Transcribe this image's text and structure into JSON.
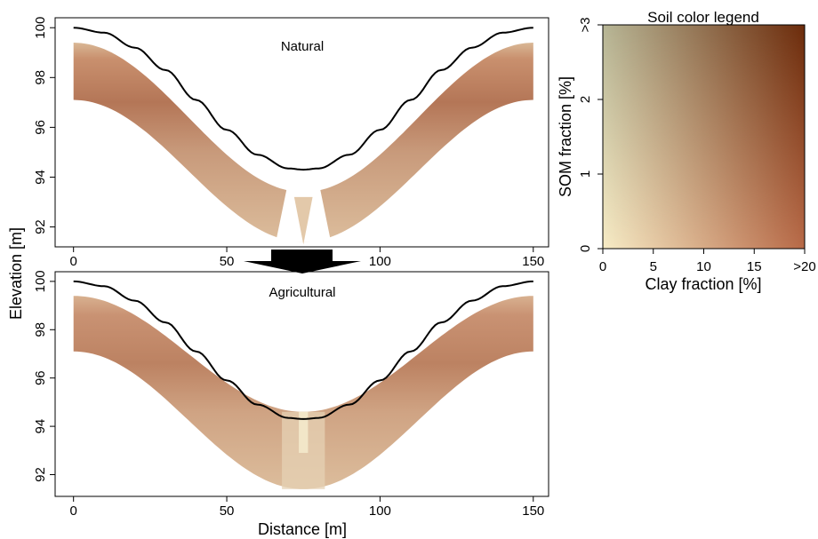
{
  "chart_data": [
    {
      "type": "area",
      "title": "Natural",
      "xlabel": "",
      "ylabel": "",
      "xlim": [
        -6,
        155
      ],
      "ylim": [
        91.2,
        100.4
      ],
      "xticks": [
        0,
        50,
        100,
        150
      ],
      "yticks": [
        92,
        94,
        96,
        98,
        100
      ],
      "surface_profile": {
        "x": [
          0,
          10,
          20,
          30,
          40,
          50,
          60,
          70,
          75,
          80,
          90,
          100,
          110,
          120,
          130,
          140,
          150
        ],
        "y": [
          100.0,
          99.8,
          99.2,
          98.3,
          97.1,
          95.9,
          94.9,
          94.35,
          94.3,
          94.35,
          94.9,
          95.9,
          97.1,
          98.3,
          99.2,
          99.8,
          100.0
        ]
      },
      "soil_top": {
        "x": [
          0,
          75,
          150
        ],
        "y": [
          99.4,
          93.4,
          99.4
        ]
      },
      "soil_bottom": {
        "x": [
          0,
          75,
          150
        ],
        "y": [
          97.1,
          91.4,
          97.1
        ]
      }
    },
    {
      "type": "area",
      "title": "Agricultural",
      "xlabel": "Distance [m]",
      "ylabel": "",
      "xlim": [
        -6,
        155
      ],
      "ylim": [
        91.1,
        100.4
      ],
      "xticks": [
        0,
        50,
        100,
        150
      ],
      "yticks": [
        92,
        94,
        96,
        98,
        100
      ],
      "surface_profile": {
        "x": [
          0,
          10,
          20,
          30,
          40,
          50,
          60,
          70,
          75,
          80,
          90,
          100,
          110,
          120,
          130,
          140,
          150
        ],
        "y": [
          100.0,
          99.8,
          99.2,
          98.3,
          97.1,
          95.9,
          94.9,
          94.35,
          94.3,
          94.35,
          94.9,
          95.9,
          97.1,
          98.3,
          99.2,
          99.8,
          100.0
        ]
      },
      "soil_top": {
        "x": [
          0,
          75,
          150
        ],
        "y": [
          99.4,
          94.6,
          99.4
        ]
      },
      "soil_bottom": {
        "x": [
          0,
          75,
          150
        ],
        "y": [
          97.1,
          91.4,
          97.1
        ]
      }
    },
    {
      "type": "heatmap",
      "title": "Soil color legend",
      "xlabel": "Clay fraction [%]",
      "ylabel": "SOM fraction [%]",
      "xlim": [
        0,
        20
      ],
      "ylim": [
        0,
        3
      ],
      "xticks": [
        "0",
        "5",
        "10",
        "15",
        ">20"
      ],
      "yticks": [
        "0",
        "1",
        "2",
        ">3"
      ]
    }
  ],
  "shared_ylabel": "Elevation [m]",
  "colors": {
    "soil_light": "#f7ecc6",
    "soil_clay": "#b86a48",
    "soil_som": "#b6b595",
    "soil_dark": "#6b2b0b",
    "profile_surface": "#d9b896",
    "profile_deep": "#a9684a",
    "profile_line": "#000000",
    "arrow": "#000000"
  }
}
